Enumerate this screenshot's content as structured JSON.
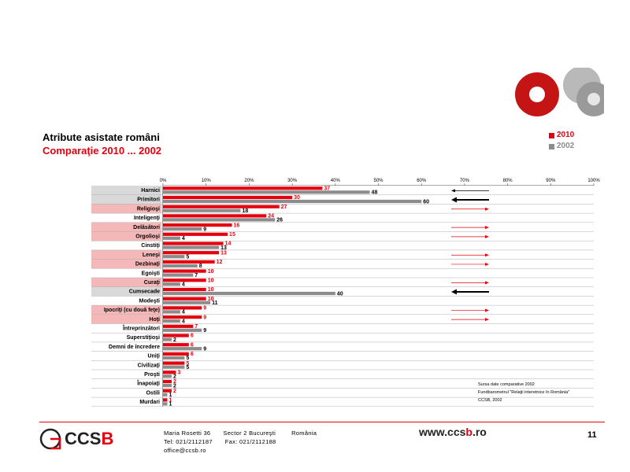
{
  "header": {
    "title": "Atribute asistate români",
    "subtitle": "Comparaţie 2010 ... 2002"
  },
  "legend": [
    {
      "label": "2010",
      "color": "#e4000f"
    },
    {
      "label": "2002",
      "color": "#8c8c8c"
    }
  ],
  "chart_data": {
    "type": "bar",
    "orientation": "horizontal",
    "x_ticks": [
      "0%",
      "10%",
      "20%",
      "30%",
      "40%",
      "50%",
      "60%",
      "70%",
      "80%",
      "90%",
      "100%"
    ],
    "xlim": [
      0,
      100
    ],
    "categories": [
      "Harnici",
      "Primitori",
      "Religioşi",
      "Inteligenţi",
      "Delăsători",
      "Orgolioşi",
      "Cinstiţi",
      "Leneşi",
      "Dezbinaţi",
      "Egoişti",
      "Curaţi",
      "Cumsecade",
      "Modeşti",
      "Ipocriţi (cu două feţe)",
      "Hoţi",
      "Întreprinzători",
      "Superstiţioşi",
      "Demni de încredere",
      "Uniţi",
      "Civilizaţi",
      "Proşti",
      "Înapoiaţi",
      "Ostili",
      "Murdari"
    ],
    "highlight": [
      "grey",
      "grey",
      "pink",
      "none",
      "pink",
      "pink",
      "none",
      "pink",
      "pink",
      "none",
      "pink",
      "grey",
      "none",
      "pink",
      "pink",
      "none",
      "none",
      "none",
      "none",
      "none",
      "none",
      "none",
      "none",
      "none"
    ],
    "series": [
      {
        "name": "2010",
        "color": "#e4000f",
        "values": [
          37,
          30,
          27,
          24,
          16,
          15,
          14,
          13,
          12,
          10,
          10,
          10,
          10,
          9,
          9,
          7,
          6,
          6,
          6,
          5,
          3,
          2,
          2,
          1
        ]
      },
      {
        "name": "2002",
        "color": "#8c8c8c",
        "values": [
          48,
          60,
          18,
          26,
          9,
          4,
          13,
          5,
          8,
          7,
          4,
          40,
          11,
          4,
          4,
          9,
          2,
          9,
          5,
          5,
          2,
          2,
          1,
          1
        ]
      }
    ],
    "arrows": [
      "left-thin",
      "left-bold",
      "right-red",
      "none",
      "right-red",
      "right-red",
      "none",
      "right-red",
      "right-red",
      "none",
      "right-red",
      "left-bold",
      "none",
      "right-red",
      "right-red",
      "none",
      "none",
      "none",
      "none",
      "none",
      "none",
      "none",
      "none",
      "none"
    ]
  },
  "source_note": [
    "Sursa date comparative 2002",
    "Fundbarometrul \"Relaţii interetnice în România\"",
    "CCSB, 2002"
  ],
  "footer": {
    "logo_text": "CCSB",
    "address_line": "Maria Rosetti 36",
    "sector": "Sector 2  Bucureşti",
    "country": "România",
    "tel": "Tel: 021/2112187",
    "fax": "Fax: 021/2112188",
    "email": "office@ccsb.ro",
    "website_prefix": "www.ccs",
    "website_accent": "b",
    "website_suffix": ".ro",
    "page_number": "11"
  }
}
